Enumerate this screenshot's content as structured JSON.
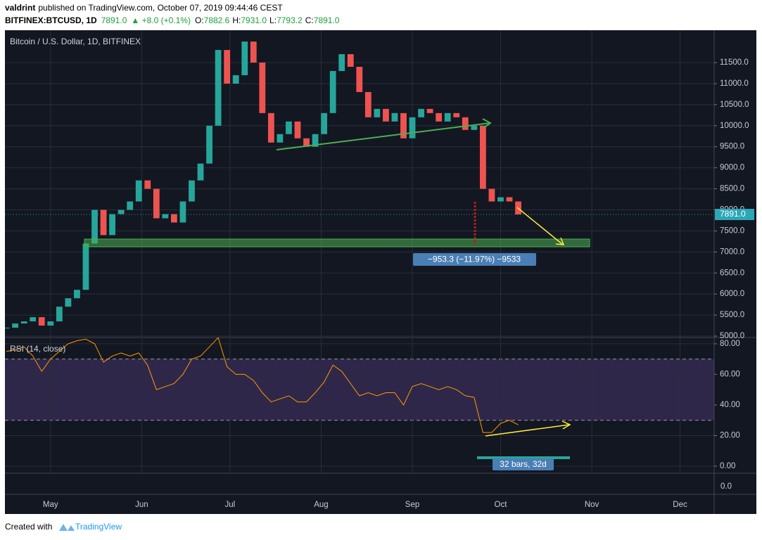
{
  "header": {
    "author": "valdrint",
    "published": "published on TradingView.com, October 07, 2019 09:44:46 CEST",
    "symbol": "BITFINEX:BTCUSD, 1D",
    "last": "7891.0",
    "change": "▲ +8.0 (+0.1%)",
    "ohlc": [
      {
        "key": "O:",
        "value": "7882.6"
      },
      {
        "key": "H:",
        "value": "7931.0"
      },
      {
        "key": "L:",
        "value": "7793.2"
      },
      {
        "key": "C:",
        "value": "7891.0"
      }
    ]
  },
  "annotations": {
    "measure": "−953.3 (−11.97%) −9533",
    "range": "32 bars, 32d"
  },
  "lower_panel_label": "0.0",
  "footer": {
    "created_with": "Created with",
    "brand": "TradingView"
  },
  "chart_data": [
    {
      "type": "candlestick",
      "title": "Bitcoin / U.S. Dollar, 1D, BITFINEX",
      "x": [
        -15,
        -12,
        -9,
        -6,
        -3,
        0,
        3,
        6,
        9,
        12,
        15,
        18,
        21,
        24,
        27,
        30,
        33,
        36,
        39,
        42,
        45,
        48,
        51,
        54,
        57,
        60,
        63,
        66,
        69,
        72,
        75,
        78,
        81,
        84,
        87,
        90,
        93,
        96,
        99,
        102,
        105,
        108,
        111,
        114,
        117,
        120,
        123,
        126,
        129,
        132,
        135,
        138,
        141,
        144,
        147,
        150,
        153,
        156,
        159
      ],
      "values": [
        5200,
        5300,
        5350,
        5450,
        5250,
        5350,
        5700,
        5900,
        6100,
        7200,
        8000,
        7400,
        7900,
        8000,
        8200,
        8700,
        8500,
        7800,
        7900,
        7700,
        8200,
        8700,
        9100,
        10000,
        11800,
        11000,
        11200,
        12000,
        11500,
        10300,
        9600,
        9800,
        10100,
        9700,
        9500,
        9800,
        10300,
        11300,
        11700,
        11400,
        10800,
        10200,
        10400,
        10100,
        10300,
        9700,
        10200,
        10400,
        10300,
        10100,
        10300,
        10200,
        9900,
        10000,
        8500,
        8200,
        8300,
        8200,
        7891
      ],
      "up_color": "#26a69a",
      "down_color": "#ef5350",
      "last_price": {
        "value": 7891,
        "label": "7891.0"
      },
      "xlim": [
        -15.5,
        225.6
      ],
      "xticks": [
        {
          "value": 0,
          "label": "May"
        },
        {
          "value": 31,
          "label": "Jun"
        },
        {
          "value": 61,
          "label": "Jul"
        },
        {
          "value": 92,
          "label": "Aug"
        },
        {
          "value": 123,
          "label": "Sep"
        },
        {
          "value": 153,
          "label": "Oct"
        },
        {
          "value": 184,
          "label": "Nov"
        },
        {
          "value": 214,
          "label": "Dec"
        }
      ],
      "ylim": [
        4967,
        12269
      ],
      "yticks": [
        {
          "value": 5000,
          "label": "5000.0"
        },
        {
          "value": 5500,
          "label": "5500.0"
        },
        {
          "value": 6000,
          "label": "6000.0"
        },
        {
          "value": 6500,
          "label": "6500.0"
        },
        {
          "value": 7000,
          "label": "7000.0"
        },
        {
          "value": 7500,
          "label": "7500.0"
        },
        {
          "value": 8000,
          "label": "8000.0"
        },
        {
          "value": 8500,
          "label": "8500.0"
        },
        {
          "value": 9000,
          "label": "9000.0"
        },
        {
          "value": 9500,
          "label": "9500.0"
        },
        {
          "value": 10000,
          "label": "10000.0"
        },
        {
          "value": 10500,
          "label": "10500.0"
        },
        {
          "value": 11000,
          "label": "11000.0"
        },
        {
          "value": 11500,
          "label": "11500.0"
        }
      ],
      "grid": true
    },
    {
      "type": "line",
      "title": "RSI (14, close)",
      "x": [
        -15,
        -12,
        -9,
        -6,
        -3,
        0,
        3,
        6,
        9,
        12,
        15,
        18,
        21,
        24,
        27,
        30,
        33,
        36,
        39,
        42,
        45,
        48,
        51,
        54,
        57,
        60,
        63,
        66,
        69,
        72,
        75,
        78,
        81,
        84,
        87,
        90,
        93,
        96,
        99,
        102,
        105,
        108,
        111,
        114,
        117,
        120,
        123,
        126,
        129,
        132,
        135,
        138,
        141,
        144,
        147,
        150,
        153,
        156,
        159
      ],
      "values": [
        75,
        76,
        78,
        72,
        62,
        70,
        75,
        80,
        82,
        83,
        80,
        68,
        72,
        74,
        72,
        74,
        66,
        50,
        52,
        54,
        60,
        70,
        72,
        78,
        84,
        65,
        60,
        60,
        56,
        48,
        42,
        44,
        46,
        42,
        42,
        48,
        55,
        66,
        62,
        54,
        46,
        48,
        46,
        48,
        48,
        40,
        52,
        54,
        52,
        50,
        52,
        50,
        46,
        45,
        22,
        22,
        28,
        30,
        27
      ],
      "color": "#ff9800",
      "band": [
        30,
        70
      ],
      "band_color": "#7e57c2",
      "xlim": [
        -15.5,
        225.6
      ],
      "ylim": [
        -4.6,
        84.1
      ],
      "yticks": [
        {
          "value": 0,
          "label": "0.00"
        },
        {
          "value": 20,
          "label": "20.00"
        },
        {
          "value": 40,
          "label": "40.00"
        },
        {
          "value": 60,
          "label": "60.00"
        },
        {
          "value": 80,
          "label": "80.00"
        }
      ],
      "grid": true
    }
  ]
}
